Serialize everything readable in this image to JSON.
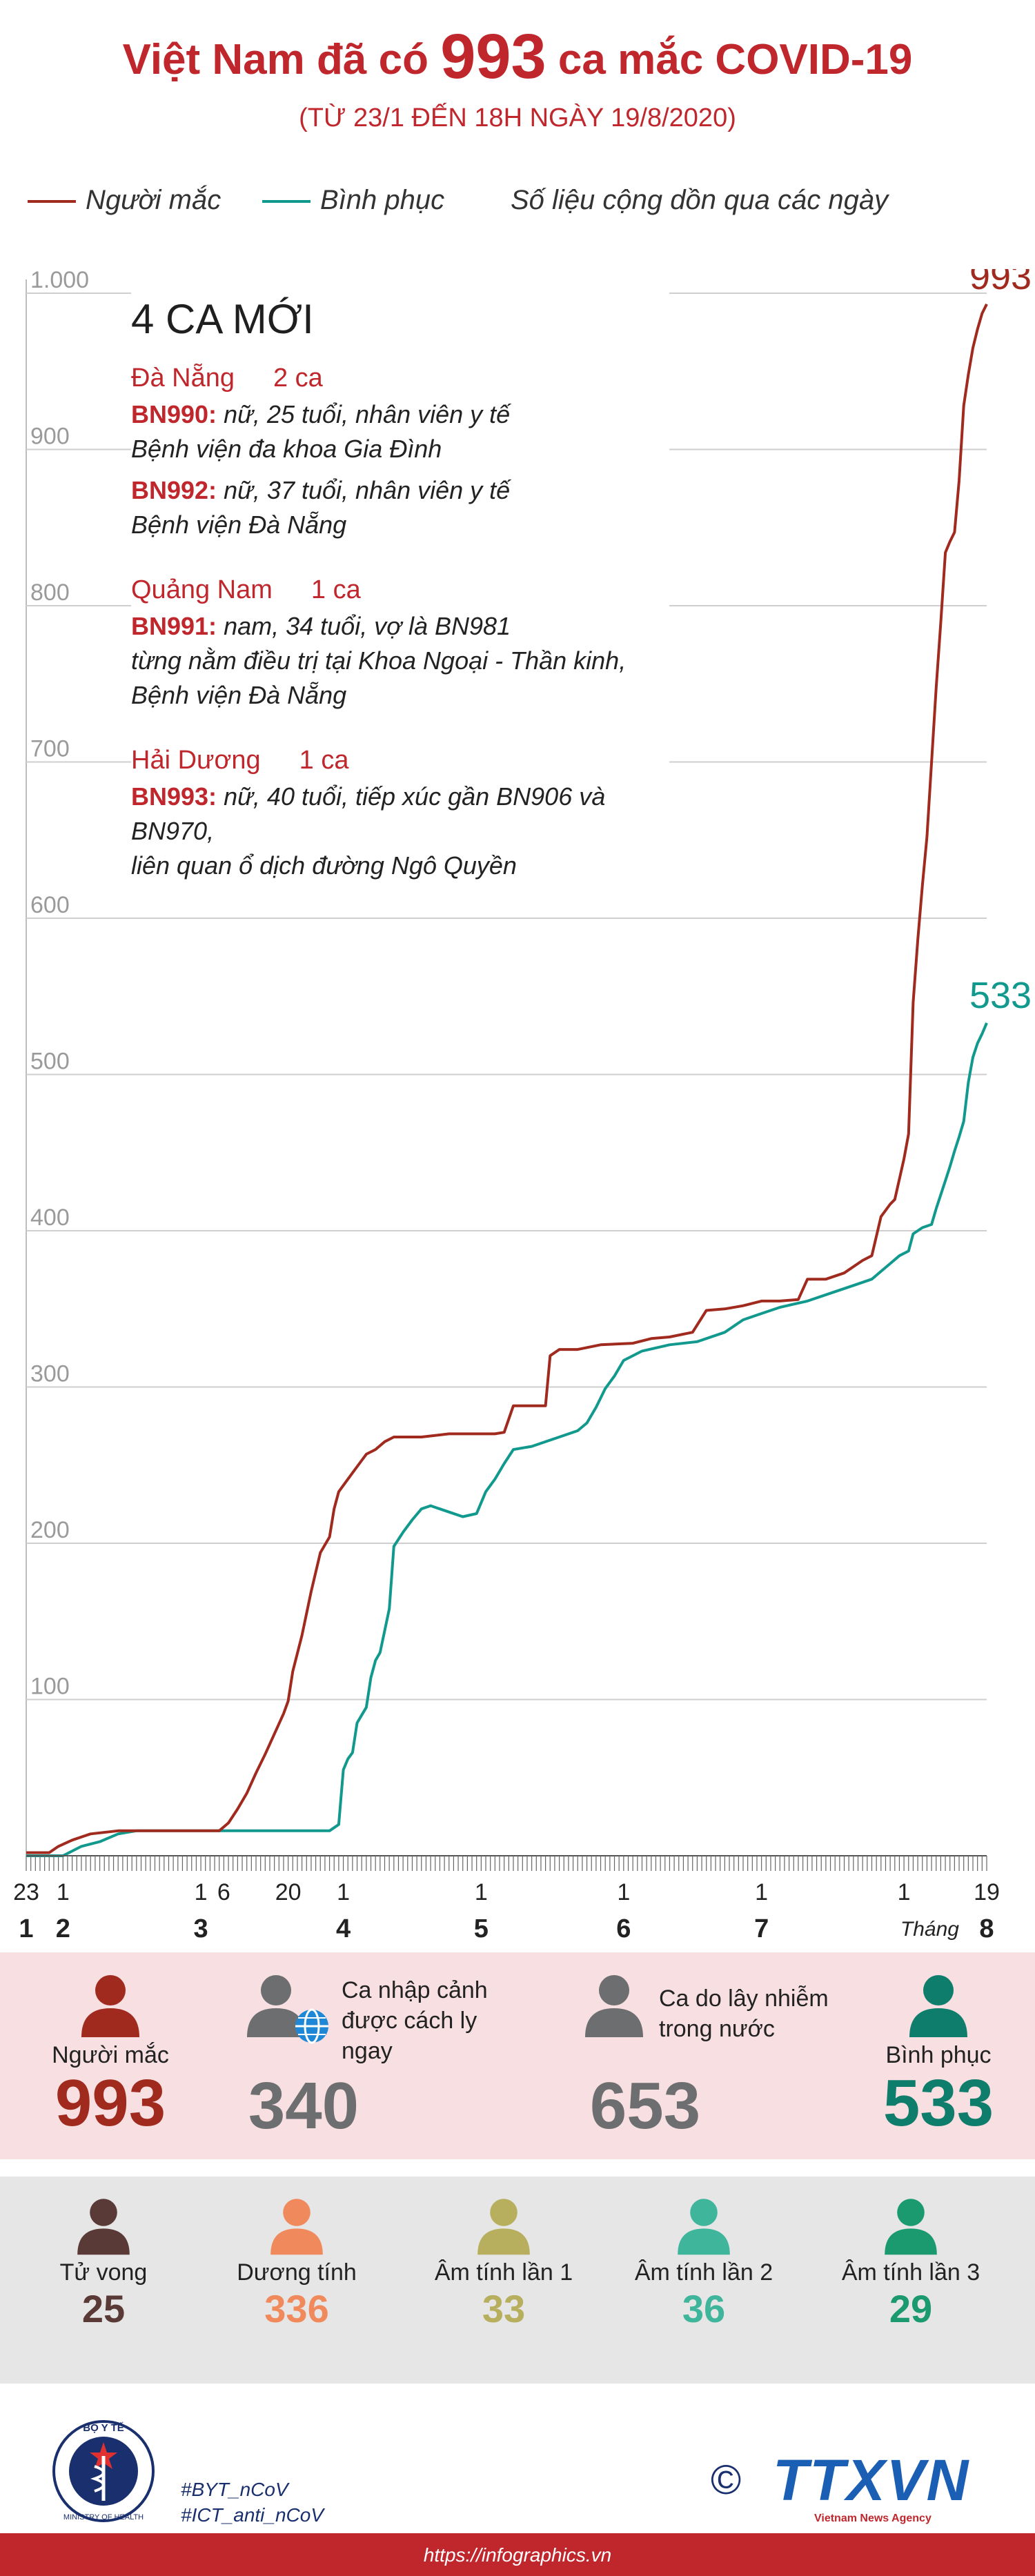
{
  "header": {
    "title_pre": "Việt Nam đã có",
    "title_number": "993",
    "title_post": "ca mắc COVID-19",
    "subtitle": "(TỪ 23/1 ĐẾN 18H NGÀY 19/8/2020)"
  },
  "legend": {
    "infected": "Người mắc",
    "recovered": "Bình phục",
    "note": "Số liệu cộng dồn qua các ngày"
  },
  "colors": {
    "infected": "#a02a1e",
    "recovered": "#11998e",
    "accent": "#c0272d"
  },
  "chart_data": {
    "type": "line",
    "title": "Việt Nam đã có 993 ca mắc COVID-19",
    "ylim": [
      0,
      1000
    ],
    "y_ticks": [
      100,
      200,
      300,
      400,
      500,
      600,
      700,
      800,
      900,
      1000
    ],
    "y_tick_labels": [
      "100",
      "200",
      "300",
      "400",
      "500",
      "600",
      "700",
      "800",
      "900",
      "1.000"
    ],
    "grid": true,
    "legend_position": "top-left",
    "x_day_labels": [
      {
        "day": 0,
        "label": "23"
      },
      {
        "day": 8,
        "label": "1"
      },
      {
        "day": 38,
        "label": "1"
      },
      {
        "day": 43,
        "label": "6"
      },
      {
        "day": 57,
        "label": "20"
      },
      {
        "day": 69,
        "label": "1"
      },
      {
        "day": 99,
        "label": "1"
      },
      {
        "day": 130,
        "label": "1"
      },
      {
        "day": 160,
        "label": "1"
      },
      {
        "day": 191,
        "label": "1"
      },
      {
        "day": 209,
        "label": "19"
      }
    ],
    "x_month_labels": [
      {
        "day": 0,
        "label": "1"
      },
      {
        "day": 8,
        "label": "2"
      },
      {
        "day": 38,
        "label": "3"
      },
      {
        "day": 69,
        "label": "4"
      },
      {
        "day": 99,
        "label": "5"
      },
      {
        "day": 130,
        "label": "6"
      },
      {
        "day": 160,
        "label": "7"
      },
      {
        "day": 209,
        "label": "8"
      }
    ],
    "month_word": "Tháng",
    "series": [
      {
        "name": "Người mắc",
        "color": "#a02a1e",
        "end_label": "993",
        "points": [
          [
            0,
            2
          ],
          [
            5,
            2
          ],
          [
            7,
            6
          ],
          [
            10,
            10
          ],
          [
            14,
            14
          ],
          [
            20,
            16
          ],
          [
            26,
            16
          ],
          [
            31,
            16
          ],
          [
            38,
            16
          ],
          [
            42,
            16
          ],
          [
            44,
            21
          ],
          [
            46,
            30
          ],
          [
            48,
            40
          ],
          [
            50,
            53
          ],
          [
            52,
            65
          ],
          [
            54,
            78
          ],
          [
            56,
            91
          ],
          [
            57,
            99
          ],
          [
            58,
            118
          ],
          [
            60,
            141
          ],
          [
            62,
            169
          ],
          [
            64,
            194
          ],
          [
            66,
            204
          ],
          [
            67,
            222
          ],
          [
            68,
            233
          ],
          [
            70,
            241
          ],
          [
            72,
            249
          ],
          [
            74,
            257
          ],
          [
            76,
            260
          ],
          [
            78,
            265
          ],
          [
            80,
            268
          ],
          [
            86,
            268
          ],
          [
            92,
            270
          ],
          [
            98,
            270
          ],
          [
            102,
            270
          ],
          [
            104,
            271
          ],
          [
            106,
            288
          ],
          [
            110,
            288
          ],
          [
            113,
            288
          ],
          [
            114,
            320
          ],
          [
            116,
            324
          ],
          [
            120,
            324
          ],
          [
            125,
            327
          ],
          [
            132,
            328
          ],
          [
            136,
            331
          ],
          [
            140,
            332
          ],
          [
            145,
            335
          ],
          [
            148,
            349
          ],
          [
            152,
            350
          ],
          [
            156,
            352
          ],
          [
            160,
            355
          ],
          [
            164,
            355
          ],
          [
            168,
            356
          ],
          [
            170,
            369
          ],
          [
            174,
            369
          ],
          [
            178,
            373
          ],
          [
            182,
            381
          ],
          [
            184,
            384
          ],
          [
            186,
            409
          ],
          [
            188,
            417
          ],
          [
            189,
            420
          ],
          [
            191,
            446
          ],
          [
            192,
            462
          ],
          [
            193,
            546
          ],
          [
            194,
            586
          ],
          [
            195,
            621
          ],
          [
            196,
            652
          ],
          [
            198,
            747
          ],
          [
            199,
            789
          ],
          [
            200,
            834
          ],
          [
            201,
            841
          ],
          [
            202,
            847
          ],
          [
            203,
            880
          ],
          [
            204,
            928
          ],
          [
            205,
            948
          ],
          [
            206,
            965
          ],
          [
            207,
            977
          ],
          [
            208,
            987
          ],
          [
            209,
            993
          ]
        ]
      },
      {
        "name": "Bình phục",
        "color": "#11998e",
        "end_label": "533",
        "points": [
          [
            0,
            0
          ],
          [
            8,
            0
          ],
          [
            12,
            6
          ],
          [
            16,
            9
          ],
          [
            20,
            14
          ],
          [
            24,
            16
          ],
          [
            30,
            16
          ],
          [
            40,
            16
          ],
          [
            50,
            16
          ],
          [
            60,
            16
          ],
          [
            66,
            16
          ],
          [
            68,
            20
          ],
          [
            69,
            55
          ],
          [
            70,
            62
          ],
          [
            71,
            66
          ],
          [
            72,
            85
          ],
          [
            74,
            95
          ],
          [
            75,
            114
          ],
          [
            76,
            125
          ],
          [
            77,
            130
          ],
          [
            78,
            144
          ],
          [
            79,
            158
          ],
          [
            80,
            198
          ],
          [
            82,
            207
          ],
          [
            84,
            215
          ],
          [
            86,
            222
          ],
          [
            88,
            224
          ],
          [
            90,
            222
          ],
          [
            92,
            220
          ],
          [
            95,
            217
          ],
          [
            98,
            219
          ],
          [
            100,
            233
          ],
          [
            102,
            241
          ],
          [
            104,
            251
          ],
          [
            106,
            260
          ],
          [
            110,
            262
          ],
          [
            114,
            266
          ],
          [
            116,
            268
          ],
          [
            120,
            272
          ],
          [
            122,
            277
          ],
          [
            124,
            287
          ],
          [
            126,
            299
          ],
          [
            128,
            307
          ],
          [
            130,
            317
          ],
          [
            134,
            323
          ],
          [
            140,
            327
          ],
          [
            146,
            329
          ],
          [
            152,
            335
          ],
          [
            156,
            343
          ],
          [
            160,
            347
          ],
          [
            164,
            351
          ],
          [
            170,
            355
          ],
          [
            176,
            361
          ],
          [
            180,
            365
          ],
          [
            184,
            369
          ],
          [
            186,
            374
          ],
          [
            188,
            379
          ],
          [
            190,
            384
          ],
          [
            192,
            387
          ],
          [
            193,
            398
          ],
          [
            195,
            402
          ],
          [
            197,
            404
          ],
          [
            198,
            414
          ],
          [
            200,
            432
          ],
          [
            201,
            441
          ],
          [
            202,
            451
          ],
          [
            203,
            460
          ],
          [
            204,
            470
          ],
          [
            205,
            495
          ],
          [
            206,
            511
          ],
          [
            207,
            520
          ],
          [
            208,
            526
          ],
          [
            209,
            533
          ]
        ]
      }
    ]
  },
  "annotation": {
    "title": "4 CA MỚI",
    "groups": [
      {
        "province": "Đà Nẵng",
        "count": "2 ca",
        "cases": [
          {
            "id": "BN990:",
            "line1": "nữ, 25 tuổi, nhân viên y tế",
            "line2": "Bệnh viện đa khoa Gia Đình"
          },
          {
            "id": "BN992:",
            "line1": "nữ, 37 tuổi, nhân viên y tế",
            "line2": "Bệnh viện Đà Nẵng"
          }
        ]
      },
      {
        "province": "Quảng Nam",
        "count": "1 ca",
        "cases": [
          {
            "id": "BN991:",
            "line1": "nam, 34 tuổi, vợ là BN981",
            "line2": "từng nằm điều trị tại Khoa Ngoại - Thần kinh,",
            "line3": "Bệnh viện Đà Nẵng"
          }
        ]
      },
      {
        "province": "Hải Dương",
        "count": "1 ca",
        "cases": [
          {
            "id": "BN993:",
            "line1": "nữ, 40 tuổi, tiếp xúc gần BN906 và BN970,",
            "line2": "liên quan ổ dịch đường Ngô Quyền"
          }
        ]
      }
    ]
  },
  "summary": {
    "infected": {
      "label": "Người mắc",
      "value": "993",
      "color": "#a02a1e"
    },
    "imported": {
      "label1": "Ca nhập cảnh",
      "label2": "được cách ly ngay",
      "value": "340",
      "color": "#6d6e70"
    },
    "domestic": {
      "label1": "Ca do lây nhiễm",
      "label2": "trong nước",
      "value": "653",
      "color": "#6d6e70"
    },
    "recovered": {
      "label": "Bình phục",
      "value": "533",
      "color": "#0f7d6b"
    }
  },
  "status": [
    {
      "label": "Tử vong",
      "value": "25",
      "color": "#5a3a36"
    },
    {
      "label": "Dương tính",
      "value": "336",
      "color": "#f08a5d"
    },
    {
      "label": "Âm tính lần 1",
      "value": "33",
      "color": "#b7ae5e"
    },
    {
      "label": "Âm tính lần 2",
      "value": "36",
      "color": "#3fb59c"
    },
    {
      "label": "Âm tính lần 3",
      "value": "29",
      "color": "#1a9a6e"
    }
  ],
  "footer": {
    "logo_top": "BỘ Y TẾ",
    "logo_bottom": "MINISTRY OF HEALTH",
    "tag1": "#BYT_nCoV",
    "tag2": "#ICT_anti_nCoV",
    "copyright": "©",
    "agency": "TTXVN",
    "agency_sub": "Vietnam News Agency",
    "url": "https://infographics.vn"
  }
}
